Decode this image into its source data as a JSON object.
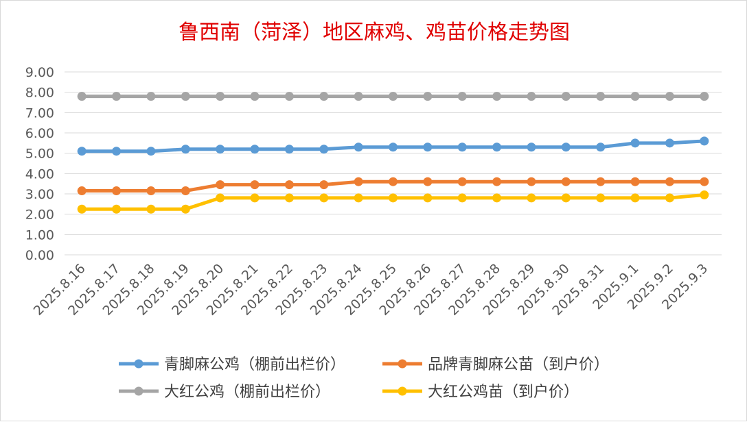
{
  "chart_data": {
    "type": "line",
    "title": "鲁西南（菏泽）地区麻鸡、鸡苗价格走势图",
    "title_color": "#e00000",
    "xlabel": "",
    "ylabel": "",
    "ylim": [
      0,
      9
    ],
    "y_ticks": [
      "0.00",
      "1.00",
      "2.00",
      "3.00",
      "4.00",
      "5.00",
      "6.00",
      "7.00",
      "8.00",
      "9.00"
    ],
    "grid": true,
    "legend_position": "bottom",
    "categories": [
      "2025.8.16",
      "2025.8.17",
      "2025.8.18",
      "2025.8.19",
      "2025.8.20",
      "2025.8.21",
      "2025.8.22",
      "2025.8.23",
      "2025.8.24",
      "2025.8.25",
      "2025.8.26",
      "2025.8.27",
      "2025.8.28",
      "2025.8.29",
      "2025.8.30",
      "2025.8.31",
      "2025.9.1",
      "2025.9.2",
      "2025.9.3"
    ],
    "series": [
      {
        "name": "青脚麻公鸡（棚前出栏价）",
        "color": "#5b9bd5",
        "values": [
          5.1,
          5.1,
          5.1,
          5.2,
          5.2,
          5.2,
          5.2,
          5.2,
          5.3,
          5.3,
          5.3,
          5.3,
          5.3,
          5.3,
          5.3,
          5.3,
          5.5,
          5.5,
          5.6
        ]
      },
      {
        "name": "品牌青脚麻公苗（到户价）",
        "color": "#ed7d31",
        "values": [
          3.15,
          3.15,
          3.15,
          3.15,
          3.45,
          3.45,
          3.45,
          3.45,
          3.6,
          3.6,
          3.6,
          3.6,
          3.6,
          3.6,
          3.6,
          3.6,
          3.6,
          3.6,
          3.6
        ]
      },
      {
        "name": "大红公鸡（棚前出栏价）",
        "color": "#a5a5a5",
        "values": [
          7.8,
          7.8,
          7.8,
          7.8,
          7.8,
          7.8,
          7.8,
          7.8,
          7.8,
          7.8,
          7.8,
          7.8,
          7.8,
          7.8,
          7.8,
          7.8,
          7.8,
          7.8,
          7.8
        ]
      },
      {
        "name": "大红公鸡苗（到户价）",
        "color": "#ffc000",
        "values": [
          2.25,
          2.25,
          2.25,
          2.25,
          2.8,
          2.8,
          2.8,
          2.8,
          2.8,
          2.8,
          2.8,
          2.8,
          2.8,
          2.8,
          2.8,
          2.8,
          2.8,
          2.8,
          2.95
        ]
      }
    ]
  }
}
